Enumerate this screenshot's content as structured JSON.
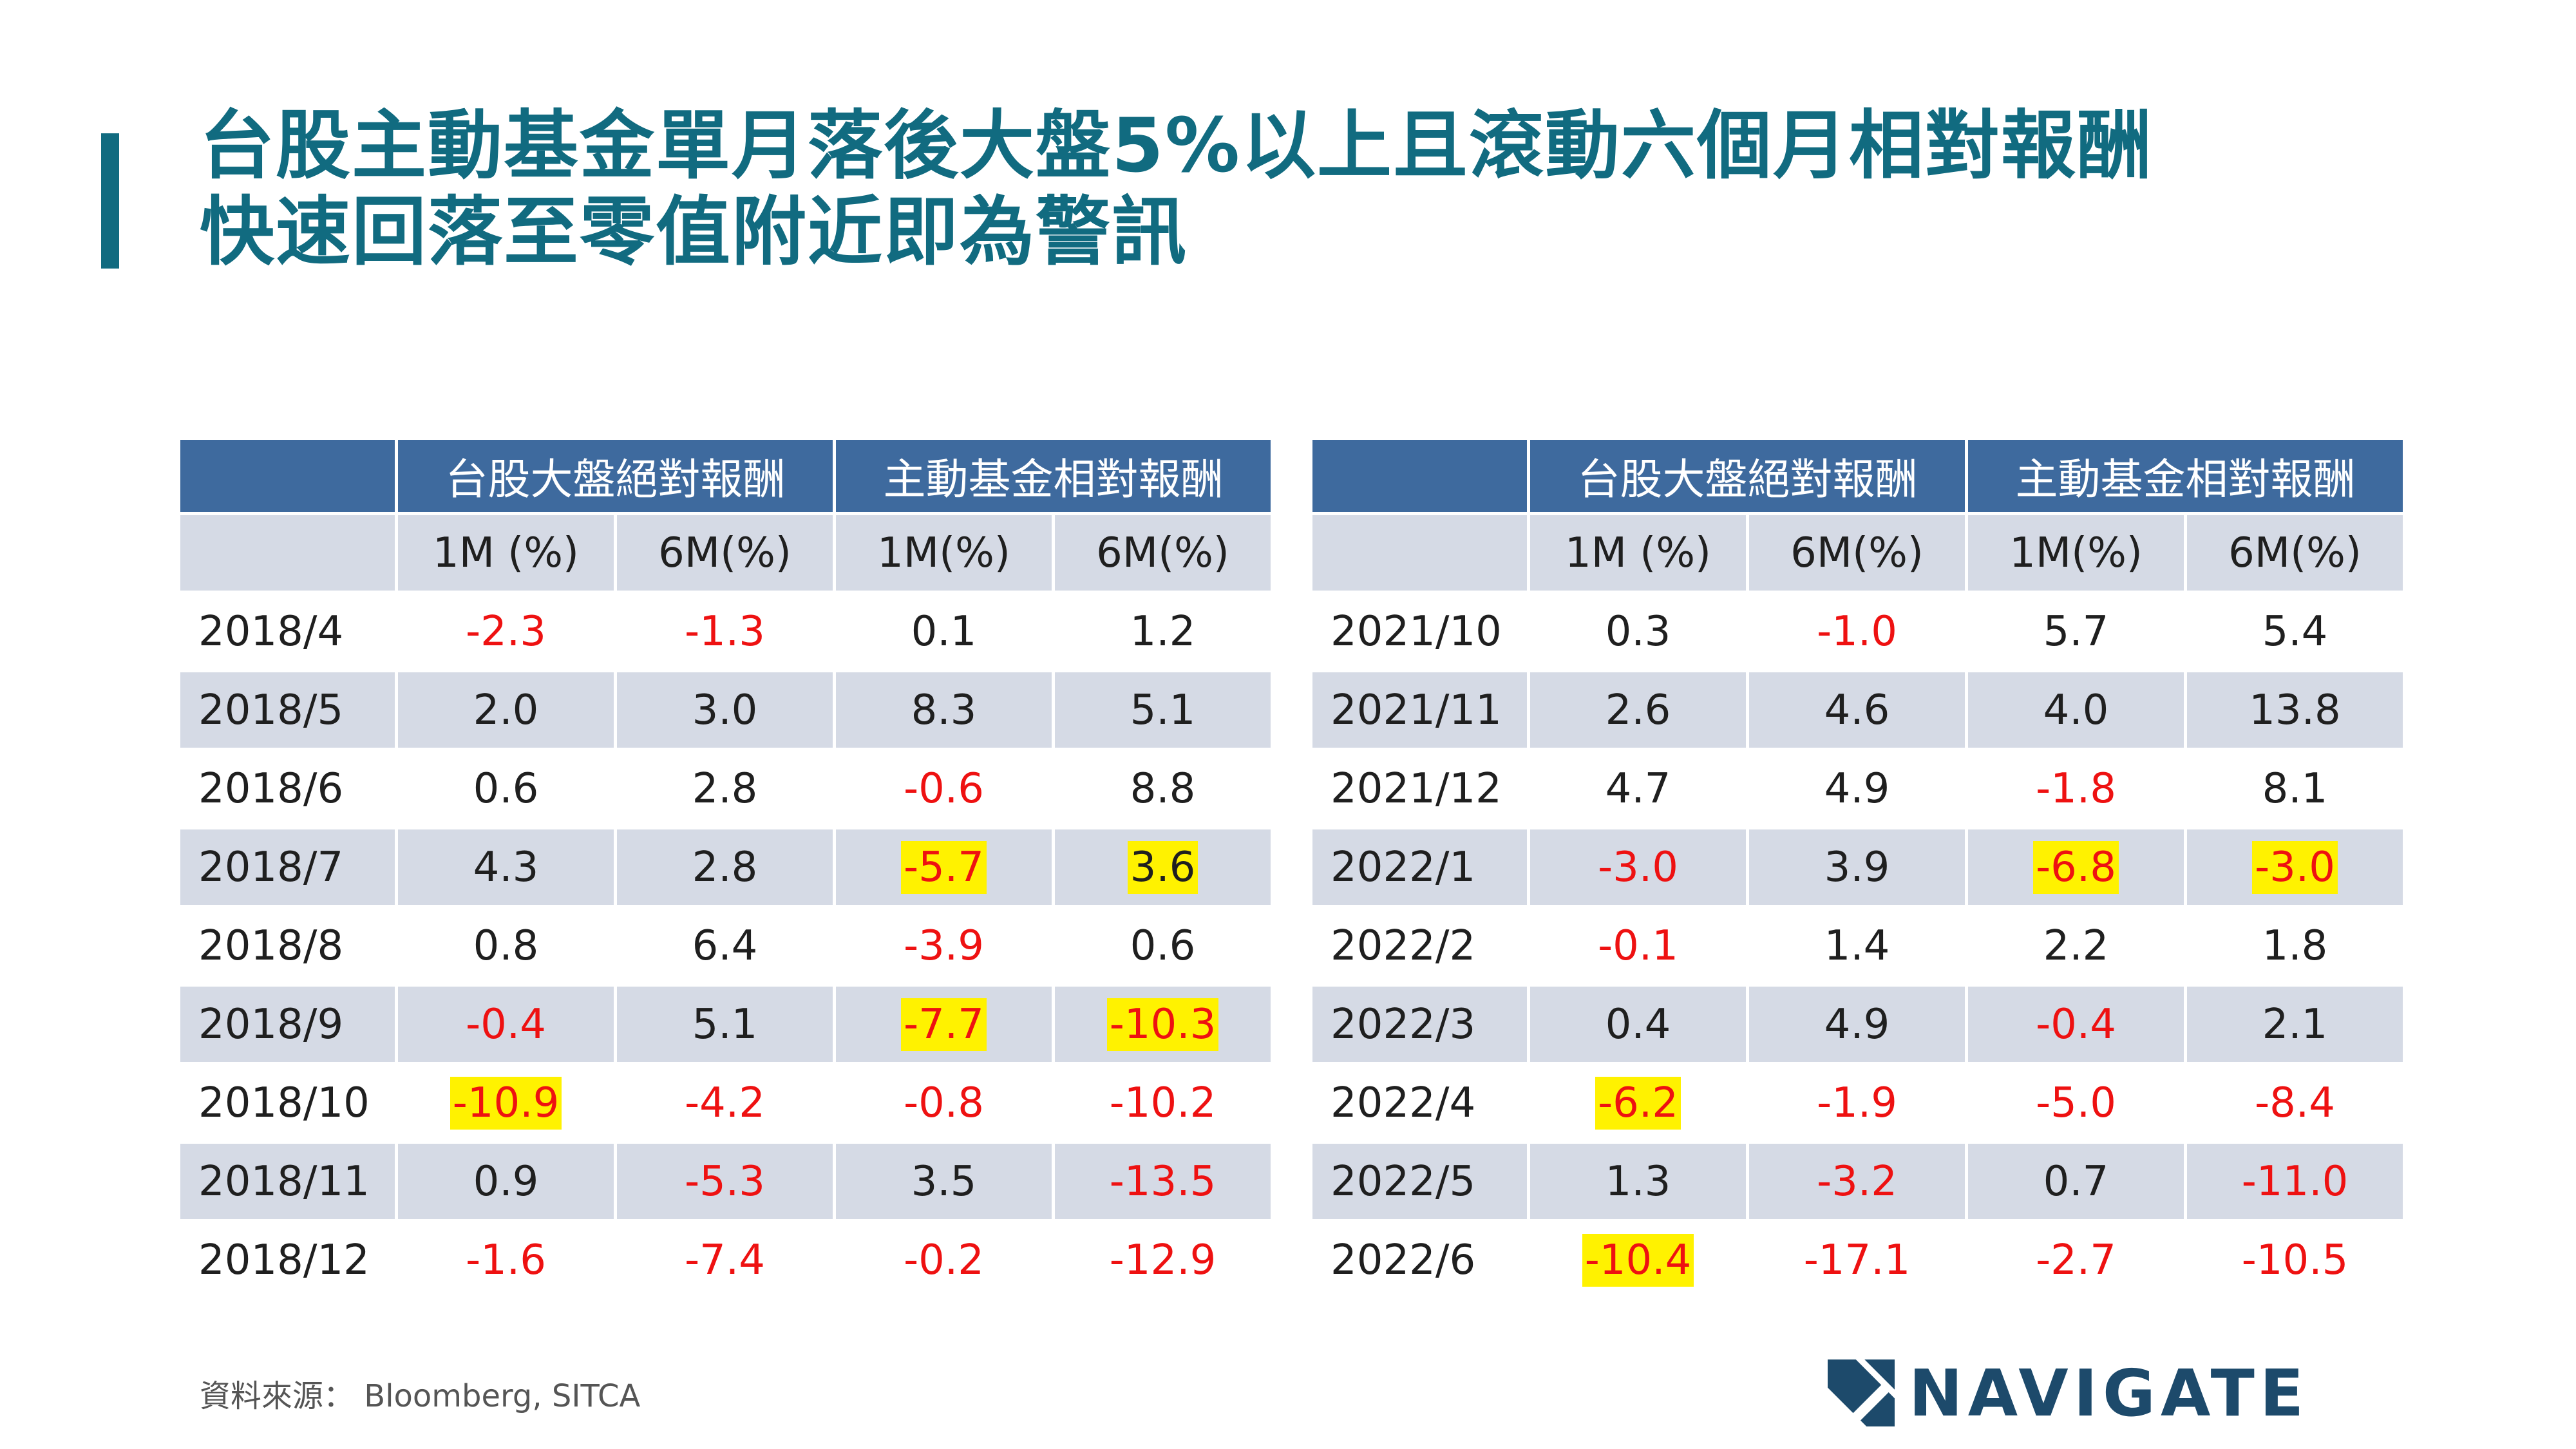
{
  "title": {
    "line1": "台股主動基金單月落後大盤5%以上且滾動六個月相對報酬",
    "line2": "快速回落至零值附近即為警訊"
  },
  "tables": [
    {
      "group1": "台股大盤絕對報酬",
      "group2": "主動基金相對報酬",
      "cols": [
        "1M (%)",
        "6M(%)",
        "1M(%)",
        "6M(%)"
      ],
      "rows": [
        {
          "date": "2018/4",
          "cells": [
            {
              "v": "-2.3",
              "neg": true
            },
            {
              "v": "-1.3",
              "neg": true
            },
            {
              "v": "0.1"
            },
            {
              "v": "1.2"
            }
          ]
        },
        {
          "date": "2018/5",
          "cells": [
            {
              "v": "2.0"
            },
            {
              "v": "3.0"
            },
            {
              "v": "8.3"
            },
            {
              "v": "5.1"
            }
          ]
        },
        {
          "date": "2018/6",
          "cells": [
            {
              "v": "0.6"
            },
            {
              "v": "2.8"
            },
            {
              "v": "-0.6",
              "neg": true
            },
            {
              "v": "8.8"
            }
          ]
        },
        {
          "date": "2018/7",
          "cells": [
            {
              "v": "4.3"
            },
            {
              "v": "2.8"
            },
            {
              "v": "-5.7",
              "neg": true,
              "hl": true
            },
            {
              "v": "3.6",
              "hl": true
            }
          ]
        },
        {
          "date": "2018/8",
          "cells": [
            {
              "v": "0.8"
            },
            {
              "v": "6.4"
            },
            {
              "v": "-3.9",
              "neg": true
            },
            {
              "v": "0.6"
            }
          ]
        },
        {
          "date": "2018/9",
          "cells": [
            {
              "v": "-0.4",
              "neg": true
            },
            {
              "v": "5.1"
            },
            {
              "v": "-7.7",
              "neg": true,
              "hl": true
            },
            {
              "v": "-10.3",
              "neg": true,
              "hl": true
            }
          ]
        },
        {
          "date": "2018/10",
          "cells": [
            {
              "v": "-10.9",
              "neg": true,
              "hl": true
            },
            {
              "v": "-4.2",
              "neg": true
            },
            {
              "v": "-0.8",
              "neg": true
            },
            {
              "v": "-10.2",
              "neg": true
            }
          ]
        },
        {
          "date": "2018/11",
          "cells": [
            {
              "v": "0.9"
            },
            {
              "v": "-5.3",
              "neg": true
            },
            {
              "v": "3.5"
            },
            {
              "v": "-13.5",
              "neg": true
            }
          ]
        },
        {
          "date": "2018/12",
          "cells": [
            {
              "v": "-1.6",
              "neg": true
            },
            {
              "v": "-7.4",
              "neg": true
            },
            {
              "v": "-0.2",
              "neg": true
            },
            {
              "v": "-12.9",
              "neg": true
            }
          ]
        }
      ]
    },
    {
      "group1": "台股大盤絕對報酬",
      "group2": "主動基金相對報酬",
      "cols": [
        "1M (%)",
        "6M(%)",
        "1M(%)",
        "6M(%)"
      ],
      "rows": [
        {
          "date": "2021/10",
          "cells": [
            {
              "v": "0.3"
            },
            {
              "v": "-1.0",
              "neg": true
            },
            {
              "v": "5.7"
            },
            {
              "v": "5.4"
            }
          ]
        },
        {
          "date": "2021/11",
          "cells": [
            {
              "v": "2.6"
            },
            {
              "v": "4.6"
            },
            {
              "v": "4.0"
            },
            {
              "v": "13.8"
            }
          ]
        },
        {
          "date": "2021/12",
          "cells": [
            {
              "v": "4.7"
            },
            {
              "v": "4.9"
            },
            {
              "v": "-1.8",
              "neg": true
            },
            {
              "v": "8.1"
            }
          ]
        },
        {
          "date": "2022/1",
          "cells": [
            {
              "v": "-3.0",
              "neg": true
            },
            {
              "v": "3.9"
            },
            {
              "v": "-6.8",
              "neg": true,
              "hl": true
            },
            {
              "v": "-3.0",
              "neg": true,
              "hl": true
            }
          ]
        },
        {
          "date": "2022/2",
          "cells": [
            {
              "v": "-0.1",
              "neg": true
            },
            {
              "v": "1.4"
            },
            {
              "v": "2.2"
            },
            {
              "v": "1.8"
            }
          ]
        },
        {
          "date": "2022/3",
          "cells": [
            {
              "v": "0.4"
            },
            {
              "v": "4.9"
            },
            {
              "v": "-0.4",
              "neg": true
            },
            {
              "v": "2.1"
            }
          ]
        },
        {
          "date": "2022/4",
          "cells": [
            {
              "v": "-6.2",
              "neg": true,
              "hl": true
            },
            {
              "v": "-1.9",
              "neg": true
            },
            {
              "v": "-5.0",
              "neg": true
            },
            {
              "v": "-8.4",
              "neg": true
            }
          ]
        },
        {
          "date": "2022/5",
          "cells": [
            {
              "v": "1.3"
            },
            {
              "v": "-3.2",
              "neg": true
            },
            {
              "v": "0.7"
            },
            {
              "v": "-11.0",
              "neg": true
            }
          ]
        },
        {
          "date": "2022/6",
          "cells": [
            {
              "v": "-10.4",
              "neg": true,
              "hl": true
            },
            {
              "v": "-17.1",
              "neg": true
            },
            {
              "v": "-2.7",
              "neg": true
            },
            {
              "v": "-10.5",
              "neg": true
            }
          ]
        }
      ]
    }
  ],
  "source": "資料來源： Bloomberg, SITCA",
  "logo": {
    "text": "NAVIGATE",
    "icon": "navigate-logo-icon"
  },
  "colors": {
    "title": "#116b80",
    "header_blue": "#3e6a9e",
    "stripe": "#d5dae5",
    "negative": "#ee1111",
    "highlight": "#fff200",
    "logo": "#1d4a6b"
  }
}
